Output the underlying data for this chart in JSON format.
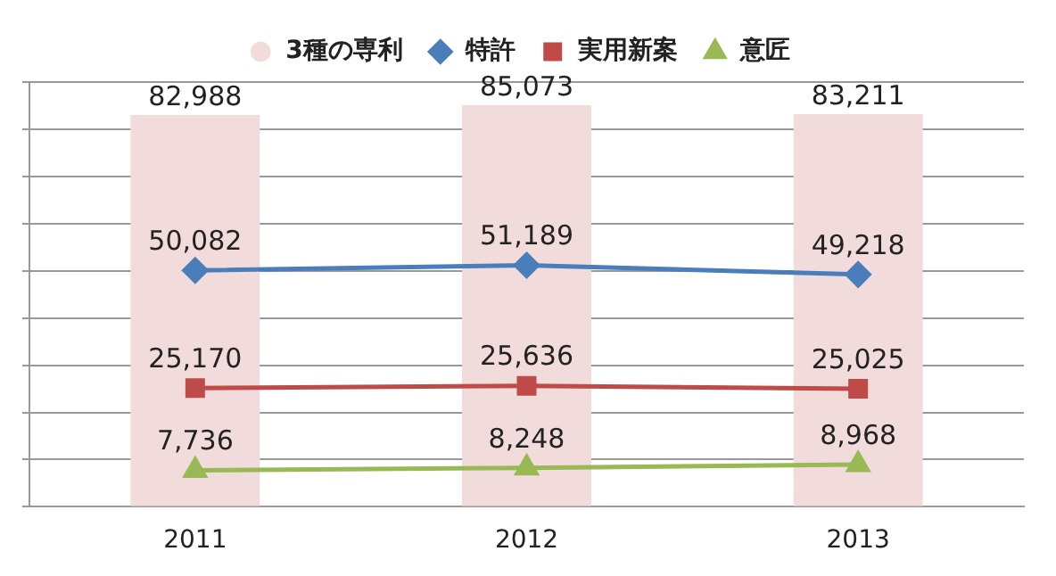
{
  "chart_data": {
    "type": "bar",
    "categories": [
      "2011",
      "2012",
      "2013"
    ],
    "series": [
      {
        "name": "3種の専利",
        "color": "#f2dcdb",
        "values": [
          82988,
          85073,
          83211
        ],
        "value_labels": [
          "82,988",
          "85,073",
          "83,211"
        ]
      },
      {
        "name": "特許",
        "type": "line",
        "color": "#4a7ebb",
        "marker": "diamond",
        "values": [
          50082,
          51189,
          49218
        ],
        "value_labels": [
          "50,082",
          "51,189",
          "49,218"
        ]
      },
      {
        "name": "実用新案",
        "type": "line",
        "color": "#be4b48",
        "marker": "square",
        "values": [
          25170,
          25636,
          25025
        ],
        "value_labels": [
          "25,170",
          "25,636",
          "25,025"
        ]
      },
      {
        "name": "意匠",
        "type": "line",
        "color": "#98b954",
        "marker": "triangle",
        "values": [
          7736,
          8248,
          8968
        ],
        "value_labels": [
          "7,736",
          "8,248",
          "8,968"
        ]
      }
    ],
    "tick_labels": "x",
    "grid": "y",
    "legend": "top"
  }
}
